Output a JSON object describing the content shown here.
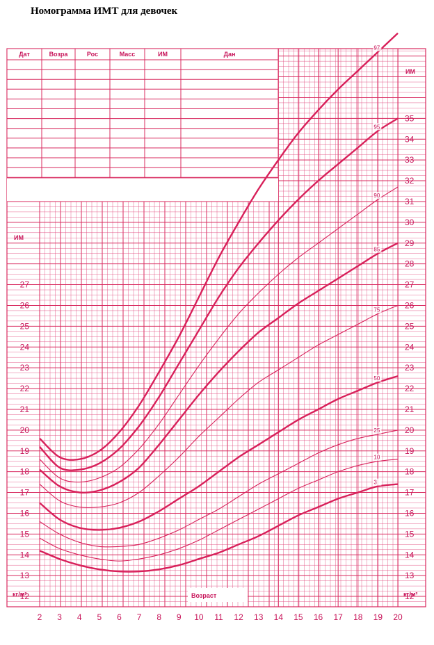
{
  "title": "Номограмма ИМТ для девочек",
  "table_headers": [
    "Дат",
    "Возра",
    "Рос",
    "Масс",
    "ИМ",
    "Дан"
  ],
  "colors": {
    "grid": "#e0447a",
    "curve": "#d8205a",
    "text": "#c8155a"
  },
  "chart_data": {
    "type": "line",
    "title": "Номограмма ИМТ для девочек",
    "xlabel": "Возраст",
    "ylabel": "ИМ",
    "unit_label": "кг/м²",
    "xlim": [
      2,
      20
    ],
    "x_ticks": [
      2,
      3,
      4,
      5,
      6,
      7,
      8,
      9,
      10,
      11,
      12,
      13,
      14,
      15,
      16,
      17,
      18,
      19,
      20
    ],
    "left_ylim": [
      11.5,
      28
    ],
    "left_y_ticks": [
      12,
      13,
      14,
      15,
      16,
      17,
      18,
      19,
      20,
      21,
      22,
      23,
      24,
      25,
      26,
      27
    ],
    "right_ylim": [
      11.5,
      35.8
    ],
    "right_y_ticks": [
      12,
      13,
      14,
      15,
      16,
      17,
      18,
      19,
      20,
      21,
      22,
      23,
      24,
      25,
      26,
      27,
      28,
      29,
      30,
      31,
      32,
      33,
      34,
      35
    ],
    "grid": true,
    "x": [
      2,
      3,
      4,
      5,
      6,
      7,
      8,
      9,
      10,
      11,
      12,
      13,
      14,
      15,
      16,
      17,
      18,
      19,
      20
    ],
    "series": [
      {
        "name": "97",
        "bold": true,
        "values": [
          19.6,
          18.7,
          18.6,
          19.0,
          19.9,
          21.2,
          22.8,
          24.5,
          26.4,
          28.3,
          30.0,
          31.6,
          33.0,
          34.3,
          35.4,
          36.4,
          37.3,
          38.2,
          39.1
        ]
      },
      {
        "name": "95",
        "bold": true,
        "values": [
          19.2,
          18.2,
          18.1,
          18.4,
          19.1,
          20.2,
          21.6,
          23.2,
          24.8,
          26.4,
          27.8,
          29.0,
          30.1,
          31.1,
          32.0,
          32.8,
          33.6,
          34.4,
          35.0
        ]
      },
      {
        "name": "90",
        "bold": false,
        "values": [
          18.6,
          17.7,
          17.5,
          17.7,
          18.2,
          19.1,
          20.3,
          21.7,
          23.1,
          24.4,
          25.6,
          26.6,
          27.5,
          28.3,
          29.0,
          29.7,
          30.4,
          31.1,
          31.7
        ]
      },
      {
        "name": "85",
        "bold": true,
        "values": [
          18.1,
          17.3,
          17.0,
          17.1,
          17.5,
          18.2,
          19.3,
          20.5,
          21.7,
          22.8,
          23.8,
          24.7,
          25.4,
          26.1,
          26.7,
          27.3,
          27.9,
          28.5,
          29.0
        ]
      },
      {
        "name": "75",
        "bold": false,
        "values": [
          17.4,
          16.6,
          16.3,
          16.3,
          16.5,
          17.0,
          17.8,
          18.7,
          19.7,
          20.6,
          21.5,
          22.3,
          22.9,
          23.5,
          24.1,
          24.6,
          25.1,
          25.6,
          26.0
        ]
      },
      {
        "name": "50",
        "bold": true,
        "values": [
          16.5,
          15.7,
          15.3,
          15.2,
          15.3,
          15.6,
          16.1,
          16.7,
          17.3,
          18.0,
          18.7,
          19.3,
          19.9,
          20.5,
          21.0,
          21.5,
          21.9,
          22.3,
          22.6
        ]
      },
      {
        "name": "25",
        "bold": false,
        "values": [
          15.6,
          15.0,
          14.6,
          14.4,
          14.4,
          14.5,
          14.8,
          15.2,
          15.7,
          16.2,
          16.8,
          17.4,
          17.9,
          18.4,
          18.9,
          19.3,
          19.6,
          19.8,
          20.0
        ]
      },
      {
        "name": "10",
        "bold": false,
        "values": [
          14.8,
          14.3,
          14.0,
          13.8,
          13.7,
          13.8,
          14.0,
          14.3,
          14.7,
          15.2,
          15.7,
          16.2,
          16.7,
          17.2,
          17.6,
          18.0,
          18.3,
          18.5,
          18.6
        ]
      },
      {
        "name": "3",
        "bold": true,
        "values": [
          14.2,
          13.8,
          13.5,
          13.3,
          13.2,
          13.2,
          13.3,
          13.5,
          13.8,
          14.1,
          14.5,
          14.9,
          15.4,
          15.9,
          16.3,
          16.7,
          17.0,
          17.3,
          17.4
        ]
      }
    ]
  }
}
